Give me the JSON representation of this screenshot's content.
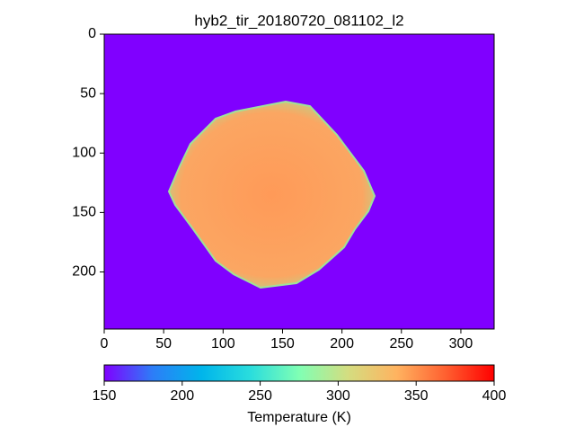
{
  "chart_data": {
    "type": "image",
    "title": "hyb2_tir_20180720_081102_l2",
    "xlim": [
      0,
      328
    ],
    "ylim": [
      248,
      0
    ],
    "xticks": [
      0,
      50,
      100,
      150,
      200,
      250,
      300
    ],
    "yticks": [
      0,
      50,
      100,
      150,
      200
    ],
    "colormap": [
      "#8000ff",
      "#2c7ef7",
      "#00b5eb",
      "#2adddd",
      "#80ffb4",
      "#d4dd80",
      "#ffb360",
      "#ff6030",
      "#ff0000"
    ],
    "colorbar": {
      "label": "Temperature (K)",
      "lim": [
        150,
        400
      ],
      "ticks": [
        150,
        200,
        250,
        300,
        350,
        400
      ]
    }
  }
}
